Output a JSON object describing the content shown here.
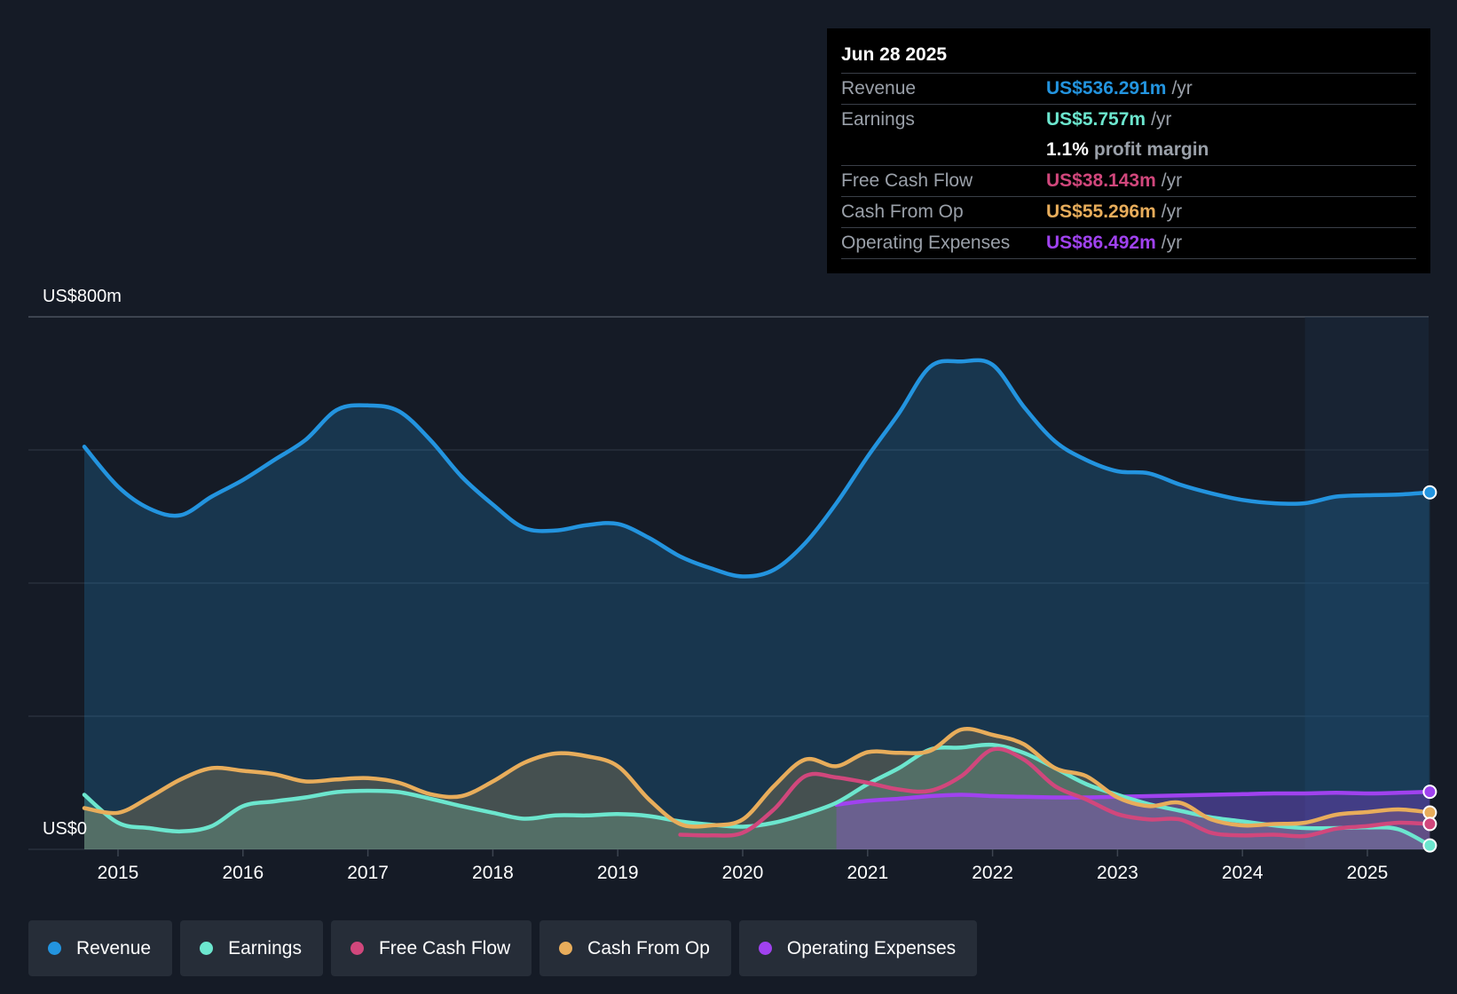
{
  "tooltip": {
    "date": "Jun 28 2025",
    "rows": [
      {
        "label": "Revenue",
        "value": "US$536.291m",
        "unit": "/yr",
        "color": "#2394df"
      },
      {
        "label": "Earnings",
        "value": "US$5.757m",
        "unit": "/yr",
        "color": "#6ce6ce"
      },
      {
        "label": "",
        "margin_value": "1.1%",
        "margin_text": "profit margin"
      },
      {
        "label": "Free Cash Flow",
        "value": "US$38.143m",
        "unit": "/yr",
        "color": "#d1477c"
      },
      {
        "label": "Cash From Op",
        "value": "US$55.296m",
        "unit": "/yr",
        "color": "#e8ad5b"
      },
      {
        "label": "Operating Expenses",
        "value": "US$86.492m",
        "unit": "/yr",
        "color": "#a042ef"
      }
    ]
  },
  "legend": [
    {
      "label": "Revenue",
      "color": "#2394df"
    },
    {
      "label": "Earnings",
      "color": "#6ce6ce"
    },
    {
      "label": "Free Cash Flow",
      "color": "#d1477c"
    },
    {
      "label": "Cash From Op",
      "color": "#e8ad5b"
    },
    {
      "label": "Operating Expenses",
      "color": "#a042ef"
    }
  ],
  "chart_data": {
    "type": "line",
    "title": "",
    "xlabel": "",
    "ylabel": "",
    "y_top_label": "US$800m",
    "y_bottom_label": "US$0",
    "ylim": [
      0,
      800
    ],
    "xlim": [
      2014.5,
      2025.55
    ],
    "x_ticks": [
      2015,
      2016,
      2017,
      2018,
      2019,
      2020,
      2021,
      2022,
      2023,
      2024,
      2025
    ],
    "gridlines": [
      0,
      200,
      400,
      600,
      800
    ],
    "forecast_start": 2024.5,
    "series": [
      {
        "name": "Revenue",
        "color": "#2394df",
        "fill": true,
        "points": [
          [
            2014.73,
            605
          ],
          [
            2015.0,
            545
          ],
          [
            2015.25,
            512
          ],
          [
            2015.5,
            502
          ],
          [
            2015.75,
            530
          ],
          [
            2016.0,
            555
          ],
          [
            2016.25,
            585
          ],
          [
            2016.5,
            615
          ],
          [
            2016.75,
            660
          ],
          [
            2017.0,
            667
          ],
          [
            2017.25,
            658
          ],
          [
            2017.5,
            615
          ],
          [
            2017.75,
            560
          ],
          [
            2018.0,
            518
          ],
          [
            2018.25,
            483
          ],
          [
            2018.5,
            479
          ],
          [
            2018.75,
            487
          ],
          [
            2019.0,
            489
          ],
          [
            2019.25,
            468
          ],
          [
            2019.5,
            440
          ],
          [
            2019.75,
            422
          ],
          [
            2020.0,
            410
          ],
          [
            2020.25,
            420
          ],
          [
            2020.5,
            460
          ],
          [
            2020.75,
            520
          ],
          [
            2021.0,
            590
          ],
          [
            2021.25,
            655
          ],
          [
            2021.5,
            725
          ],
          [
            2021.75,
            733
          ],
          [
            2022.0,
            728
          ],
          [
            2022.25,
            665
          ],
          [
            2022.5,
            613
          ],
          [
            2022.75,
            585
          ],
          [
            2023.0,
            568
          ],
          [
            2023.25,
            565
          ],
          [
            2023.5,
            548
          ],
          [
            2023.75,
            535
          ],
          [
            2024.0,
            525
          ],
          [
            2024.25,
            520
          ],
          [
            2024.5,
            520
          ],
          [
            2024.75,
            530
          ],
          [
            2025.0,
            532
          ],
          [
            2025.25,
            533
          ],
          [
            2025.5,
            536.3
          ]
        ]
      },
      {
        "name": "Earnings",
        "color": "#6ce6ce",
        "fill": true,
        "points": [
          [
            2014.73,
            82
          ],
          [
            2015.0,
            40
          ],
          [
            2015.25,
            32
          ],
          [
            2015.5,
            27
          ],
          [
            2015.75,
            35
          ],
          [
            2016.0,
            65
          ],
          [
            2016.25,
            72
          ],
          [
            2016.5,
            78
          ],
          [
            2016.75,
            86
          ],
          [
            2017.0,
            88
          ],
          [
            2017.25,
            86
          ],
          [
            2017.5,
            76
          ],
          [
            2017.75,
            65
          ],
          [
            2018.0,
            55
          ],
          [
            2018.25,
            46
          ],
          [
            2018.5,
            51
          ],
          [
            2018.75,
            51
          ],
          [
            2019.0,
            53
          ],
          [
            2019.25,
            50
          ],
          [
            2019.5,
            42
          ],
          [
            2019.75,
            37
          ],
          [
            2020.0,
            34
          ],
          [
            2020.25,
            40
          ],
          [
            2020.5,
            53
          ],
          [
            2020.75,
            70
          ],
          [
            2021.0,
            98
          ],
          [
            2021.25,
            122
          ],
          [
            2021.5,
            150
          ],
          [
            2021.75,
            153
          ],
          [
            2022.0,
            157
          ],
          [
            2022.25,
            145
          ],
          [
            2022.5,
            122
          ],
          [
            2022.75,
            98
          ],
          [
            2023.0,
            82
          ],
          [
            2023.25,
            68
          ],
          [
            2023.5,
            58
          ],
          [
            2023.75,
            48
          ],
          [
            2024.0,
            42
          ],
          [
            2024.25,
            36
          ],
          [
            2024.5,
            32
          ],
          [
            2024.75,
            32
          ],
          [
            2025.0,
            33
          ],
          [
            2025.25,
            30
          ],
          [
            2025.5,
            5.8
          ]
        ]
      },
      {
        "name": "Free Cash Flow",
        "color": "#d1477c",
        "fill": false,
        "points": [
          [
            2019.5,
            22
          ],
          [
            2019.75,
            21
          ],
          [
            2020.0,
            25
          ],
          [
            2020.25,
            60
          ],
          [
            2020.5,
            110
          ],
          [
            2020.75,
            108
          ],
          [
            2021.0,
            100
          ],
          [
            2021.25,
            90
          ],
          [
            2021.5,
            88
          ],
          [
            2021.75,
            110
          ],
          [
            2022.0,
            150
          ],
          [
            2022.25,
            135
          ],
          [
            2022.5,
            95
          ],
          [
            2022.75,
            75
          ],
          [
            2023.0,
            53
          ],
          [
            2023.25,
            45
          ],
          [
            2023.5,
            45
          ],
          [
            2023.75,
            25
          ],
          [
            2024.0,
            21
          ],
          [
            2024.25,
            22
          ],
          [
            2024.5,
            20
          ],
          [
            2024.75,
            31
          ],
          [
            2025.0,
            35
          ],
          [
            2025.25,
            40
          ],
          [
            2025.5,
            38.1
          ]
        ]
      },
      {
        "name": "Cash From Op",
        "color": "#e8ad5b",
        "fill": true,
        "points": [
          [
            2014.73,
            62
          ],
          [
            2015.0,
            55
          ],
          [
            2015.25,
            78
          ],
          [
            2015.5,
            105
          ],
          [
            2015.75,
            122
          ],
          [
            2016.0,
            118
          ],
          [
            2016.25,
            113
          ],
          [
            2016.5,
            102
          ],
          [
            2016.75,
            105
          ],
          [
            2017.0,
            107
          ],
          [
            2017.25,
            100
          ],
          [
            2017.5,
            83
          ],
          [
            2017.75,
            80
          ],
          [
            2018.0,
            102
          ],
          [
            2018.25,
            130
          ],
          [
            2018.5,
            144
          ],
          [
            2018.75,
            140
          ],
          [
            2019.0,
            125
          ],
          [
            2019.25,
            75
          ],
          [
            2019.5,
            38
          ],
          [
            2019.75,
            36
          ],
          [
            2020.0,
            45
          ],
          [
            2020.25,
            95
          ],
          [
            2020.5,
            135
          ],
          [
            2020.75,
            125
          ],
          [
            2021.0,
            146
          ],
          [
            2021.25,
            145
          ],
          [
            2021.5,
            148
          ],
          [
            2021.75,
            180
          ],
          [
            2022.0,
            172
          ],
          [
            2022.25,
            158
          ],
          [
            2022.5,
            122
          ],
          [
            2022.75,
            110
          ],
          [
            2023.0,
            78
          ],
          [
            2023.25,
            65
          ],
          [
            2023.5,
            70
          ],
          [
            2023.75,
            45
          ],
          [
            2024.0,
            36
          ],
          [
            2024.25,
            38
          ],
          [
            2024.5,
            40
          ],
          [
            2024.75,
            52
          ],
          [
            2025.0,
            56
          ],
          [
            2025.25,
            60
          ],
          [
            2025.5,
            55.3
          ]
        ]
      },
      {
        "name": "Operating Expenses",
        "color": "#a042ef",
        "fill": true,
        "points": [
          [
            2020.75,
            67
          ],
          [
            2021.0,
            73
          ],
          [
            2021.25,
            76
          ],
          [
            2021.5,
            80
          ],
          [
            2021.75,
            82
          ],
          [
            2022.0,
            80
          ],
          [
            2022.25,
            79
          ],
          [
            2022.5,
            78
          ],
          [
            2022.75,
            78
          ],
          [
            2023.0,
            79
          ],
          [
            2023.25,
            80
          ],
          [
            2023.5,
            81
          ],
          [
            2023.75,
            82
          ],
          [
            2024.0,
            83
          ],
          [
            2024.25,
            84
          ],
          [
            2024.5,
            84
          ],
          [
            2024.75,
            85
          ],
          [
            2025.0,
            84
          ],
          [
            2025.25,
            85
          ],
          [
            2025.5,
            86.5
          ]
        ]
      }
    ]
  }
}
